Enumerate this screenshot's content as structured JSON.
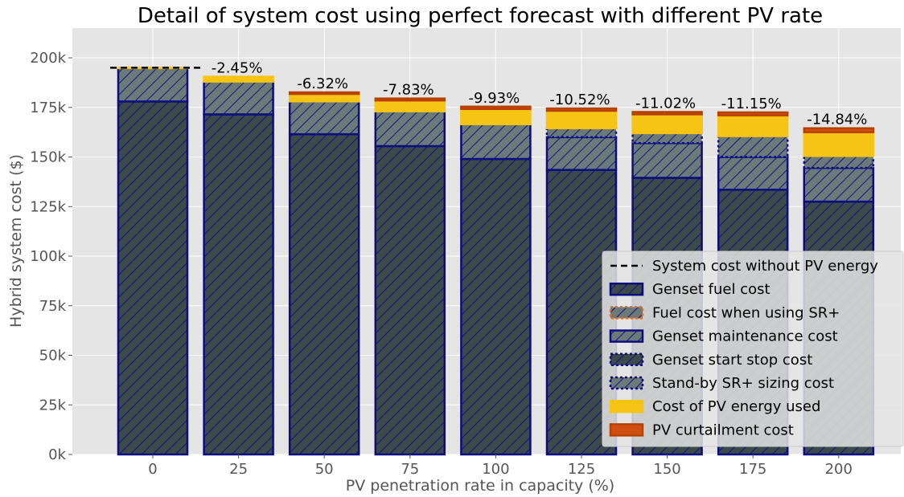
{
  "chart_data": {
    "type": "bar",
    "stacked": true,
    "title": "Detail of system cost using perfect forecast with different PV rate",
    "xlabel": "PV penetration rate in capacity (%)",
    "ylabel": "Hybrid system cost ($)",
    "categories": [
      "0",
      "25",
      "50",
      "75",
      "100",
      "125",
      "150",
      "175",
      "200"
    ],
    "ylim": [
      0,
      215000
    ],
    "yticks": [
      0,
      25000,
      50000,
      75000,
      100000,
      125000,
      150000,
      175000,
      200000
    ],
    "ytick_labels": [
      "0k",
      "25k",
      "50k",
      "75k",
      "100k",
      "125k",
      "150k",
      "175k",
      "200k"
    ],
    "grid": true,
    "legend_position": "lower-right",
    "reference_line": {
      "name": "System cost without PV energy",
      "value": 195000,
      "color": "#000000",
      "style": "dashed"
    },
    "series": [
      {
        "name": "Genset fuel cost",
        "values": [
          178000,
          171500,
          161500,
          155500,
          149000,
          143500,
          139500,
          133500,
          127500
        ],
        "fill": "#3d4a4a",
        "edge": "#0d0d80",
        "hatch": true,
        "edge_style": "solid"
      },
      {
        "name": "Fuel cost when using SR+",
        "values": [
          0,
          0,
          0,
          0,
          0,
          0,
          0,
          0,
          0
        ],
        "fill": "#6b7a78",
        "edge": "#e07020",
        "hatch": true,
        "edge_style": "dotted"
      },
      {
        "name": "Genset maintenance cost",
        "values": [
          16800,
          16500,
          16500,
          17500,
          17500,
          16500,
          17500,
          16500,
          17000
        ],
        "fill": "#6b7a78",
        "edge": "#0d0d80",
        "hatch": true,
        "edge_style": "solid"
      },
      {
        "name": "Genset start stop cost",
        "values": [
          0,
          0,
          0,
          0,
          0,
          0,
          0,
          0,
          0
        ],
        "fill": "#3d4a4a",
        "edge": "#0d0d80",
        "hatch": true,
        "edge_style": "dotted"
      },
      {
        "name": "Stand-by SR+ sizing cost",
        "values": [
          0,
          0,
          0,
          0,
          0,
          4500,
          5000,
          10500,
          6000
        ],
        "fill": "#6b7a78",
        "edge": "#0d0d80",
        "hatch": true,
        "edge_style": "dotted"
      },
      {
        "name": "Cost of PV energy used",
        "values": [
          200,
          2500,
          3800,
          5500,
          7700,
          8800,
          9500,
          10500,
          12000
        ],
        "fill": "#f5c414",
        "edge": "#f5c414",
        "hatch": false,
        "edge_style": "solid"
      },
      {
        "name": "PV curtailment cost",
        "values": [
          0,
          0,
          800,
          1000,
          1200,
          1200,
          1200,
          1500,
          2000
        ],
        "fill": "#d05010",
        "edge": "#b84000",
        "hatch": false,
        "edge_style": "solid"
      }
    ],
    "bar_labels": [
      "",
      "-2.45%",
      "-6.32%",
      "-7.83%",
      "-9.93%",
      "-10.52%",
      "-11.02%",
      "-11.15%",
      "-14.84%"
    ]
  }
}
